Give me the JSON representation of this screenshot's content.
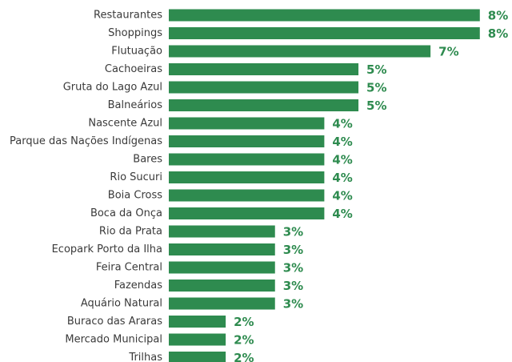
{
  "chart_data": {
    "type": "hbar",
    "color": "#2e8b4f",
    "categories": [
      "Restaurantes",
      "Shoppings",
      "Flutuação",
      "Cachoeiras",
      "Gruta do Lago Azul",
      "Balneários",
      "Nascente Azul",
      "Parque das Nações Indígenas",
      "Bares",
      "Rio Sucuri",
      "Boia Cross",
      "Boca da Onça",
      "Rio da Prata",
      "Ecopark Porto da Ilha",
      "Feira Central",
      "Fazendas",
      "Aquário Natural",
      "Buraco das Araras",
      "Mercado Municipal",
      "Trilhas"
    ],
    "values": [
      8.2,
      8.2,
      6.9,
      5.0,
      5.0,
      5.0,
      4.1,
      4.1,
      4.1,
      4.1,
      4.1,
      4.1,
      2.8,
      2.8,
      2.8,
      2.8,
      2.8,
      1.5,
      1.5,
      1.5
    ],
    "value_labels": [
      "8%",
      "8%",
      "7%",
      "5%",
      "5%",
      "5%",
      "4%",
      "4%",
      "4%",
      "4%",
      "4%",
      "4%",
      "3%",
      "3%",
      "3%",
      "3%",
      "3%",
      "2%",
      "2%",
      "2%"
    ],
    "xlim": [
      0,
      8.5
    ]
  }
}
